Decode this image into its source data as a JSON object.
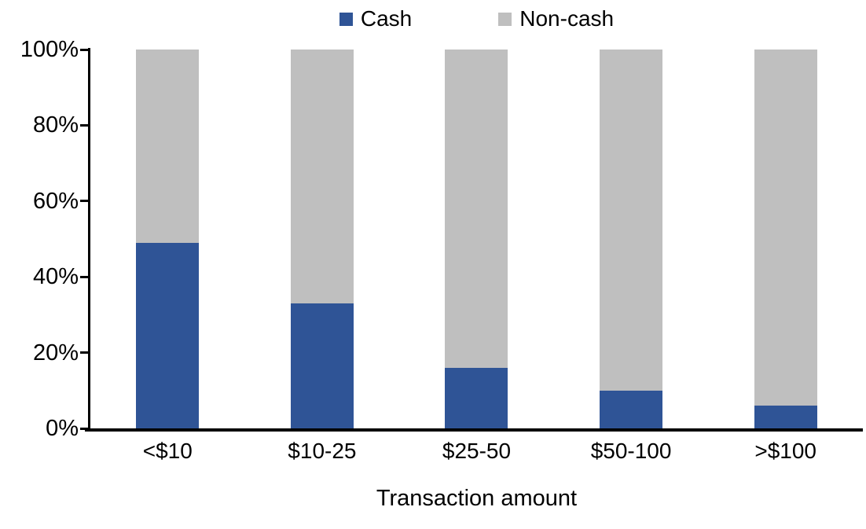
{
  "chart_data": {
    "type": "bar",
    "stacked": true,
    "percent_stacked": true,
    "title": "",
    "xlabel": "Transaction amount",
    "ylabel": "",
    "categories": [
      "<$10",
      "$10-25",
      "$25-50",
      "$50-100",
      ">$100"
    ],
    "series": [
      {
        "name": "Cash",
        "color": "#2F5496",
        "values": [
          49,
          33,
          16,
          10,
          6
        ]
      },
      {
        "name": "Non-cash",
        "color": "#BFBFBF",
        "values": [
          51,
          67,
          84,
          90,
          94
        ]
      }
    ],
    "y_ticks": [
      {
        "label": "0%",
        "value": 0
      },
      {
        "label": "20%",
        "value": 20
      },
      {
        "label": "40%",
        "value": 40
      },
      {
        "label": "60%",
        "value": 60
      },
      {
        "label": "80%",
        "value": 80
      },
      {
        "label": "100%",
        "value": 100
      }
    ],
    "ylim": [
      0,
      100
    ],
    "grid": false,
    "legend_position": "top",
    "axis_color": "#000000",
    "text_color": "#000000",
    "background_color": "#FFFFFF"
  }
}
